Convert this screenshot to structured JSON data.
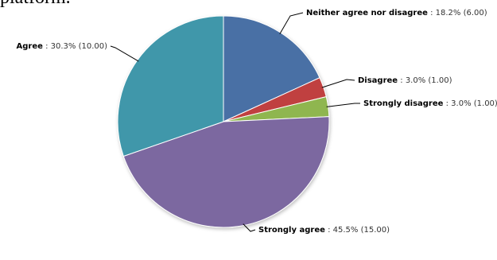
{
  "header_fragment": "platform.",
  "chart_data": {
    "type": "pie",
    "categories": [
      "Neither agree nor disagree",
      "Disagree",
      "Strongly disagree",
      "Strongly agree",
      "Agree"
    ],
    "values": [
      6.0,
      1.0,
      1.0,
      15.0,
      10.0
    ],
    "percent_labels": [
      "18.2%",
      "3.0%",
      "3.0%",
      "45.5%",
      "30.3%"
    ],
    "value_labels": [
      "(6.00)",
      "(1.00)",
      "(1.00)",
      "(15.00)",
      "(10.00)"
    ],
    "colors": [
      "#4a6fa5",
      "#c0413f",
      "#8fb64f",
      "#7b68a0",
      "#3f97aa"
    ],
    "start_angle_deg": 0,
    "direction": "clockwise-from-top",
    "legend": "none"
  }
}
